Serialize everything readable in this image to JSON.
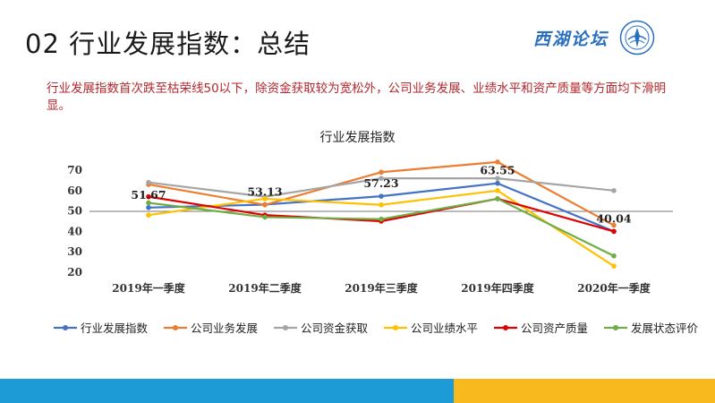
{
  "slide": {
    "title": "02 行业发展指数：总结",
    "logo_text": "西湖论坛",
    "summary": "行业发展指数首次跌至枯荣线50以下，除资金获取较为宽松外，公司业务发展、业绩水平和资产质量等方面均下滑明显。"
  },
  "colors": {
    "band_blue": "#1d9bd7",
    "band_yellow": "#f7b91e",
    "summary_text": "#b3282d"
  },
  "chart_data": {
    "type": "line",
    "title": "行业发展指数",
    "categories": [
      "2019年一季度",
      "2019年二季度",
      "2019年三季度",
      "2019年四季度",
      "2020年一季度"
    ],
    "ylim": [
      20,
      70
    ],
    "yticks": [
      20,
      30,
      40,
      50,
      60,
      70
    ],
    "grid": false,
    "legend_position": "bottom",
    "series": [
      {
        "name": "行业发展指数",
        "color": "#4472c4",
        "values": [
          51.67,
          53.13,
          57.23,
          63.55,
          40.04
        ],
        "labels": [
          "51.67",
          "53.13",
          "57.23",
          "63.55",
          "40.04"
        ]
      },
      {
        "name": "公司业务发展",
        "color": "#ed7d31",
        "values": [
          63,
          53,
          69,
          74,
          43
        ]
      },
      {
        "name": "公司资金获取",
        "color": "#a5a5a5",
        "values": [
          64,
          57,
          66,
          66,
          60
        ]
      },
      {
        "name": "公司业绩水平",
        "color": "#ffc000",
        "values": [
          48,
          56,
          53,
          60,
          23
        ]
      },
      {
        "name": "公司资产质量",
        "color": "#e00000",
        "values": [
          57,
          48,
          45,
          56,
          40
        ]
      },
      {
        "name": "发展状态评价",
        "color": "#70ad47",
        "values": [
          54,
          47,
          46,
          56,
          28
        ]
      }
    ]
  }
}
